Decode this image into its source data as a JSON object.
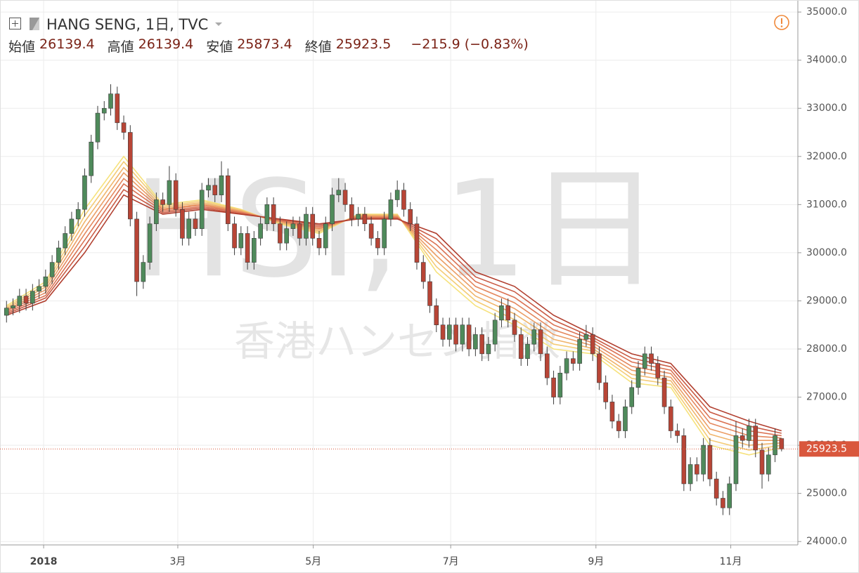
{
  "chart_data": {
    "type": "candlestick",
    "title": "HANG SENG, 1日, TVC",
    "legend_labels": [
      "始値",
      "高値",
      "安値",
      "終値"
    ],
    "change_label": "−215.9 (−0.83%)",
    "watermark": [
      "HSI, 1日",
      "香港ハンセン指数"
    ],
    "up_color": "#4f8a5b",
    "down_color": "#b84536",
    "wick_color": "#3d3d3d",
    "last_price_color": "#d9573d",
    "grid": true,
    "xlim": [
      -1,
      121.5
    ],
    "xticks": [
      {
        "value": 5.7,
        "label": "2018"
      },
      {
        "value": 26.3,
        "label": "3月"
      },
      {
        "value": 47.1,
        "label": "5月"
      },
      {
        "value": 68.2,
        "label": "7月"
      },
      {
        "value": 90.5,
        "label": "9月"
      },
      {
        "value": 111.2,
        "label": "11月"
      }
    ],
    "ylim": [
      23930,
      35250
    ],
    "yticks": [
      {
        "value": 24000,
        "label": "24000.0"
      },
      {
        "value": 25000,
        "label": "25000.0"
      },
      {
        "value": 26000,
        "label": "26000.0"
      },
      {
        "value": 27000,
        "label": "27000.0"
      },
      {
        "value": 28000,
        "label": "28000.0"
      },
      {
        "value": 29000,
        "label": "29000.0"
      },
      {
        "value": 30000,
        "label": "30000.0"
      },
      {
        "value": 31000,
        "label": "31000.0"
      },
      {
        "value": 32000,
        "label": "32000.0"
      },
      {
        "value": 33000,
        "label": "33000.0"
      },
      {
        "value": 34000,
        "label": "34000.0"
      },
      {
        "value": 35000,
        "label": "35000.0"
      }
    ],
    "open": [
      28700,
      28850,
      28900,
      29100,
      28950,
      29200,
      29300,
      29500,
      29800,
      30100,
      30400,
      30700,
      30900,
      31600,
      32300,
      32900,
      33000,
      33300,
      32700,
      32500,
      30700,
      29400,
      29800,
      30600,
      31100,
      31000,
      31500,
      30900,
      30300,
      30700,
      30500,
      31300,
      31400,
      31200,
      31600,
      30600,
      30100,
      30400,
      29800,
      30300,
      30600,
      31000,
      30600,
      30200,
      30500,
      30600,
      30300,
      30800,
      30300,
      30100,
      30600,
      31200,
      31300,
      31000,
      30700,
      30800,
      30600,
      30300,
      30100,
      30700,
      31100,
      31300,
      30900,
      30600,
      29800,
      29400,
      28900,
      28500,
      28200,
      28500,
      28100,
      28500,
      28000,
      28300,
      27900,
      28100,
      28600,
      28900,
      28600,
      28300,
      27800,
      28100,
      28400,
      27900,
      27400,
      27000,
      27500,
      27800,
      27700,
      28200,
      28300,
      27900,
      27300,
      26900,
      26500,
      26300,
      26800,
      27200,
      27600,
      27900,
      27700,
      27400,
      26800,
      26300,
      26200,
      25200,
      25600,
      25400,
      26000,
      25300,
      24900,
      24700,
      25200,
      26200,
      26100,
      26400,
      25900,
      25400,
      25800,
      26139.4
    ],
    "high": [
      29000,
      29050,
      29250,
      29250,
      29350,
      29450,
      29650,
      29950,
      30250,
      30550,
      30850,
      31050,
      31750,
      32450,
      33050,
      33150,
      33500,
      33450,
      32850,
      32650,
      30850,
      29950,
      30750,
      31250,
      31250,
      31800,
      31650,
      31050,
      30850,
      30850,
      31450,
      31550,
      31550,
      31900,
      31750,
      30750,
      30550,
      30550,
      30450,
      30750,
      31150,
      31150,
      30750,
      30650,
      30750,
      30750,
      30950,
      30950,
      30450,
      30750,
      31350,
      31550,
      31450,
      31150,
      30950,
      30950,
      30750,
      30450,
      30850,
      31250,
      31500,
      31450,
      31050,
      30750,
      29950,
      29550,
      29050,
      28650,
      28650,
      28650,
      28650,
      28650,
      28450,
      28450,
      28250,
      28750,
      29050,
      29050,
      28750,
      28450,
      28250,
      28550,
      28550,
      28050,
      27550,
      27650,
      27950,
      27950,
      28350,
      28500,
      28450,
      28050,
      27450,
      27050,
      26650,
      26950,
      27350,
      27750,
      28050,
      28050,
      27850,
      27550,
      26950,
      26450,
      26350,
      25750,
      25750,
      26150,
      26150,
      25450,
      25050,
      25350,
      26500,
      26350,
      26550,
      26550,
      26050,
      25950,
      26350,
      26139.4
    ],
    "low": [
      28550,
      28700,
      28750,
      28800,
      28800,
      29050,
      29150,
      29350,
      29650,
      29950,
      30250,
      30550,
      30750,
      31450,
      32150,
      32750,
      32850,
      32550,
      32350,
      30550,
      29100,
      29250,
      29650,
      30450,
      30850,
      30850,
      30750,
      30150,
      30150,
      30350,
      30350,
      31150,
      31050,
      31050,
      30450,
      29950,
      29950,
      29650,
      29650,
      30150,
      30450,
      30450,
      30050,
      30050,
      30350,
      30150,
      30150,
      30150,
      29950,
      29950,
      30450,
      31050,
      30850,
      30550,
      30550,
      30450,
      30150,
      29950,
      29950,
      30550,
      30950,
      30750,
      30450,
      29650,
      29250,
      28750,
      28350,
      28050,
      28050,
      27950,
      27950,
      27850,
      27850,
      27750,
      27750,
      27950,
      28450,
      28450,
      28150,
      27650,
      27650,
      27950,
      27750,
      27250,
      26850,
      26850,
      27350,
      27550,
      27550,
      28050,
      27750,
      27150,
      26750,
      26350,
      26150,
      26150,
      26650,
      27050,
      27450,
      27550,
      27250,
      26650,
      26150,
      26050,
      25050,
      25050,
      25250,
      25250,
      25150,
      24750,
      24550,
      24550,
      25050,
      25950,
      25950,
      25750,
      25100,
      25250,
      25650,
      25873.4
    ],
    "close": [
      28850,
      28900,
      29100,
      28950,
      29200,
      29300,
      29500,
      29800,
      30100,
      30400,
      30700,
      30900,
      31600,
      32300,
      32900,
      33000,
      33300,
      32700,
      32500,
      30700,
      29400,
      29800,
      30600,
      31100,
      31000,
      31500,
      30900,
      30300,
      30700,
      30500,
      31300,
      31400,
      31200,
      31600,
      30600,
      30100,
      30400,
      29800,
      30300,
      30600,
      31000,
      30600,
      30200,
      30500,
      30600,
      30300,
      30800,
      30300,
      30100,
      30600,
      31200,
      31300,
      31000,
      30700,
      30800,
      30600,
      30300,
      30100,
      30700,
      31100,
      31300,
      30900,
      30600,
      29800,
      29400,
      28900,
      28500,
      28200,
      28500,
      28100,
      28500,
      28000,
      28300,
      27900,
      28100,
      28600,
      28900,
      28600,
      28300,
      27800,
      28100,
      28400,
      27900,
      27400,
      27000,
      27500,
      27800,
      27700,
      28200,
      28300,
      27900,
      27300,
      26900,
      26500,
      26300,
      26800,
      27200,
      27600,
      27900,
      27700,
      27400,
      26800,
      26300,
      26200,
      25200,
      25600,
      25400,
      26000,
      25300,
      24900,
      24700,
      25200,
      26200,
      26100,
      26400,
      25900,
      25400,
      25800,
      26200,
      25923.5
    ],
    "ribbon_x": [
      0,
      6,
      12,
      18,
      24,
      30,
      36,
      42,
      48,
      54,
      60,
      66,
      72,
      78,
      84,
      90,
      96,
      102,
      108,
      114,
      119
    ],
    "ribbon": [
      {
        "color": "#f6e27c",
        "values": [
          28900,
          29400,
          30900,
          32000,
          31000,
          31100,
          30900,
          30600,
          30400,
          30800,
          30800,
          29600,
          28900,
          28500,
          28000,
          27900,
          27300,
          27200,
          26000,
          25800,
          25950
        ]
      },
      {
        "color": "#f4cc76",
        "values": [
          28870,
          29340,
          30770,
          31890,
          30970,
          31070,
          30890,
          30610,
          30430,
          30790,
          30790,
          29710,
          29000,
          28610,
          28100,
          27960,
          27390,
          27270,
          26110,
          25900,
          26000
        ]
      },
      {
        "color": "#f0b56c",
        "values": [
          28840,
          29290,
          30640,
          31770,
          30940,
          31040,
          30870,
          30630,
          30460,
          30770,
          30770,
          29830,
          29100,
          28730,
          28200,
          28010,
          27470,
          27340,
          26230,
          26000,
          26050
        ]
      },
      {
        "color": "#eb9e66",
        "values": [
          28810,
          29230,
          30510,
          31660,
          30910,
          31010,
          30860,
          30640,
          30490,
          30760,
          30760,
          29940,
          29200,
          28840,
          28300,
          28070,
          27560,
          27410,
          26340,
          26100,
          26100
        ]
      },
      {
        "color": "#e4885e",
        "values": [
          28790,
          29170,
          30390,
          31540,
          30890,
          30990,
          30840,
          30660,
          30510,
          30740,
          30740,
          30060,
          29300,
          28960,
          28400,
          28130,
          27640,
          27490,
          26460,
          26200,
          26150
        ]
      },
      {
        "color": "#da7253",
        "values": [
          28760,
          29110,
          30260,
          31430,
          30860,
          30960,
          30830,
          30670,
          30540,
          30730,
          30730,
          30170,
          29400,
          29070,
          28500,
          28190,
          27730,
          27560,
          26570,
          26300,
          26200
        ]
      },
      {
        "color": "#c95b45",
        "values": [
          28730,
          29060,
          30130,
          31310,
          30830,
          30930,
          30810,
          30690,
          30570,
          30710,
          30710,
          30290,
          29500,
          29190,
          28600,
          28240,
          27810,
          27630,
          26690,
          26400,
          26250
        ]
      },
      {
        "color": "#b13f2f",
        "values": [
          28700,
          29000,
          30000,
          31200,
          30800,
          30900,
          30800,
          30700,
          30600,
          30700,
          30700,
          30400,
          29600,
          29300,
          28700,
          28300,
          27900,
          27700,
          26800,
          26500,
          26300
        ]
      }
    ]
  }
}
